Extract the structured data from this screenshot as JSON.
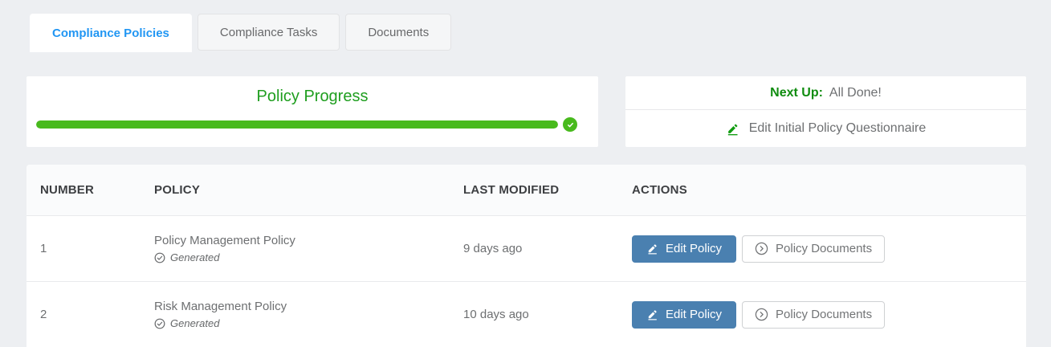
{
  "tabs": [
    {
      "label": "Compliance Policies",
      "active": true
    },
    {
      "label": "Compliance Tasks",
      "active": false
    },
    {
      "label": "Documents",
      "active": false
    }
  ],
  "progress_card": {
    "title": "Policy Progress",
    "percent": 100,
    "complete_icon": "check-circle-filled"
  },
  "next_up_card": {
    "label": "Next Up:",
    "status": "All Done!",
    "action_label": "Edit Initial Policy Questionnaire",
    "action_icon": "edit-pencil-underline"
  },
  "table": {
    "columns": [
      "NUMBER",
      "POLICY",
      "LAST MODIFIED",
      "ACTIONS"
    ],
    "rows": [
      {
        "number": "1",
        "policy": "Policy Management Policy",
        "status": "Generated",
        "status_icon": "check-circle-outline",
        "last_modified": "9 days ago",
        "edit_label": "Edit Policy",
        "documents_label": "Policy Documents"
      },
      {
        "number": "2",
        "policy": "Risk Management Policy",
        "status": "Generated",
        "status_icon": "check-circle-outline",
        "last_modified": "10 days ago",
        "edit_label": "Edit Policy",
        "documents_label": "Policy Documents"
      }
    ]
  },
  "colors": {
    "page_background": "#edeff2",
    "active_tab_text": "#2196f3",
    "progress_green": "#48ba1d",
    "title_green": "#1f9e1f",
    "next_up_green": "#0f8c0f",
    "edit_button_blue": "#4a80b0",
    "body_text_gray": "#6d6f71"
  }
}
